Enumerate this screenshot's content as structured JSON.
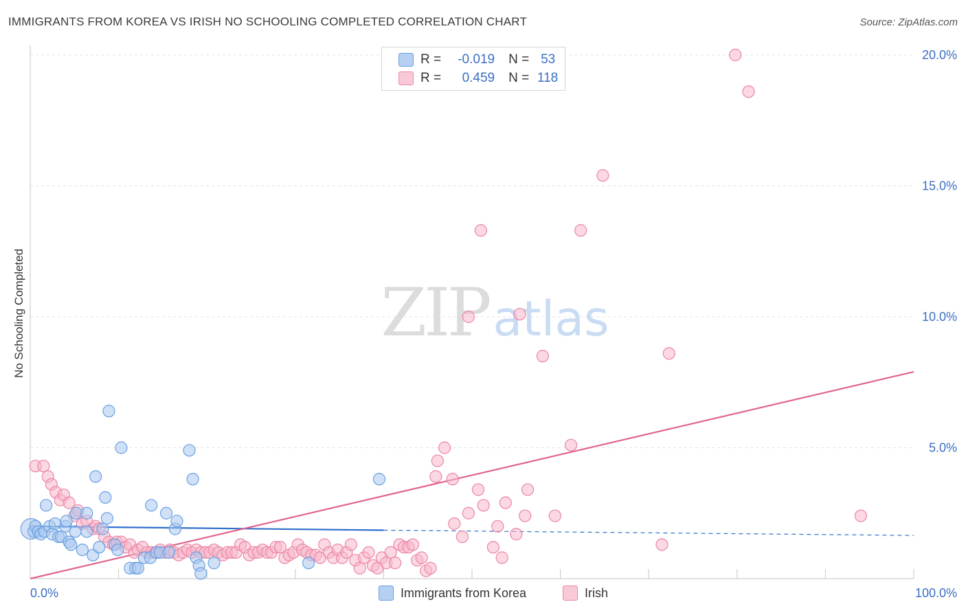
{
  "header": {
    "title": "IMMIGRANTS FROM KOREA VS IRISH NO SCHOOLING COMPLETED CORRELATION CHART",
    "source": "Source: ZipAtlas.com"
  },
  "watermark": {
    "zip": "ZIP",
    "atlas": "atlas"
  },
  "legend": {
    "r_label": "R =",
    "n_label": "N =",
    "rows": [
      {
        "series": "Immigrants from Korea",
        "r": "-0.019",
        "n": "53",
        "fill": "#a9c8f0",
        "stroke": "#6a9fe0"
      },
      {
        "series": "Irish",
        "r": "0.459",
        "n": "118",
        "fill": "#f7b8cb",
        "stroke": "#eb86a6"
      }
    ]
  },
  "bottom_legend": [
    "Immigrants from Korea",
    "Irish"
  ],
  "chart_data": {
    "type": "scatter",
    "title": "IMMIGRANTS FROM KOREA VS IRISH NO SCHOOLING COMPLETED CORRELATION CHART",
    "xlabel": "",
    "ylabel": "No Schooling Completed",
    "xlim": [
      0,
      100
    ],
    "ylim": [
      0,
      20
    ],
    "x_tick_labels": [
      "0.0%",
      "100.0%"
    ],
    "y_ticks": [
      5,
      10,
      15,
      20
    ],
    "y_tick_labels": [
      "5.0%",
      "10.0%",
      "15.0%",
      "20.0%"
    ],
    "grid": true,
    "series": [
      {
        "name": "Immigrants from Korea",
        "color": "#6a9fe0",
        "fill": "#a9c8f0",
        "points": [
          [
            0.1,
            1.9,
            "big"
          ],
          [
            0.4,
            1.8
          ],
          [
            0.6,
            2.0
          ],
          [
            0.9,
            1.8
          ],
          [
            1.2,
            1.7
          ],
          [
            1.6,
            1.8
          ],
          [
            1.8,
            2.8
          ],
          [
            2.2,
            2.0
          ],
          [
            2.5,
            1.7
          ],
          [
            2.8,
            2.1
          ],
          [
            3.2,
            1.6
          ],
          [
            3.5,
            1.6
          ],
          [
            4.0,
            2.0
          ],
          [
            4.1,
            2.2
          ],
          [
            4.4,
            1.4
          ],
          [
            4.6,
            1.3
          ],
          [
            5.1,
            1.8
          ],
          [
            5.2,
            2.5
          ],
          [
            5.9,
            1.1
          ],
          [
            6.4,
            1.8
          ],
          [
            6.4,
            2.5
          ],
          [
            7.1,
            0.9
          ],
          [
            7.4,
            3.9
          ],
          [
            7.8,
            1.2
          ],
          [
            8.2,
            1.9
          ],
          [
            8.5,
            3.1
          ],
          [
            8.7,
            2.3
          ],
          [
            8.9,
            6.4
          ],
          [
            9.6,
            1.3
          ],
          [
            9.9,
            1.1
          ],
          [
            10.3,
            5.0
          ],
          [
            11.3,
            0.4
          ],
          [
            11.9,
            0.4
          ],
          [
            12.2,
            0.4
          ],
          [
            12.9,
            0.8
          ],
          [
            13.6,
            0.8
          ],
          [
            13.7,
            2.8
          ],
          [
            14.3,
            1.0
          ],
          [
            14.7,
            1.0
          ],
          [
            15.4,
            2.5
          ],
          [
            15.7,
            1.0
          ],
          [
            16.4,
            1.9
          ],
          [
            16.6,
            2.2
          ],
          [
            18.0,
            4.9
          ],
          [
            18.4,
            3.8
          ],
          [
            18.8,
            0.8
          ],
          [
            19.1,
            0.5
          ],
          [
            19.3,
            0.2
          ],
          [
            20.8,
            0.6
          ],
          [
            31.5,
            0.6
          ],
          [
            39.5,
            3.8
          ]
        ],
        "trend": {
          "x0": 0,
          "y0": 2.0,
          "x1": 40,
          "y1": 1.85,
          "dash_to": 100,
          "dash_y": 1.65
        }
      },
      {
        "name": "Irish",
        "color": "#eb86a6",
        "fill": "#f7b8cb",
        "points": [
          [
            0.6,
            4.3
          ],
          [
            1.5,
            4.3
          ],
          [
            2.0,
            3.9
          ],
          [
            2.4,
            3.6
          ],
          [
            2.9,
            3.3
          ],
          [
            3.4,
            3.0
          ],
          [
            3.8,
            3.2
          ],
          [
            4.4,
            2.9
          ],
          [
            5.0,
            2.4
          ],
          [
            5.4,
            2.6
          ],
          [
            5.9,
            2.1
          ],
          [
            6.4,
            2.2
          ],
          [
            7.1,
            1.9
          ],
          [
            7.4,
            2.0
          ],
          [
            7.8,
            1.9
          ],
          [
            8.4,
            1.6
          ],
          [
            8.9,
            1.4
          ],
          [
            9.4,
            1.3
          ],
          [
            9.8,
            1.4
          ],
          [
            10.3,
            1.4
          ],
          [
            10.8,
            1.2
          ],
          [
            11.3,
            1.3
          ],
          [
            11.8,
            1.0
          ],
          [
            12.2,
            1.1
          ],
          [
            12.7,
            1.2
          ],
          [
            13.2,
            1.0
          ],
          [
            13.7,
            1.0
          ],
          [
            14.2,
            1.0
          ],
          [
            14.7,
            1.1
          ],
          [
            15.3,
            1.0
          ],
          [
            15.8,
            1.1
          ],
          [
            16.3,
            1.0
          ],
          [
            16.8,
            0.9
          ],
          [
            17.3,
            1.0
          ],
          [
            17.8,
            1.1
          ],
          [
            18.3,
            1.0
          ],
          [
            18.8,
            1.1
          ],
          [
            19.3,
            1.0
          ],
          [
            19.8,
            1.0
          ],
          [
            20.3,
            1.0
          ],
          [
            20.8,
            1.1
          ],
          [
            21.3,
            1.0
          ],
          [
            21.8,
            0.9
          ],
          [
            22.3,
            1.0
          ],
          [
            22.8,
            1.0
          ],
          [
            23.3,
            1.0
          ],
          [
            23.8,
            1.3
          ],
          [
            24.3,
            1.2
          ],
          [
            24.8,
            0.9
          ],
          [
            25.3,
            1.0
          ],
          [
            25.8,
            1.0
          ],
          [
            26.3,
            1.1
          ],
          [
            26.8,
            1.0
          ],
          [
            27.3,
            1.0
          ],
          [
            27.8,
            1.2
          ],
          [
            28.3,
            1.2
          ],
          [
            28.8,
            0.8
          ],
          [
            29.3,
            0.9
          ],
          [
            29.8,
            1.0
          ],
          [
            30.3,
            1.3
          ],
          [
            30.8,
            1.1
          ],
          [
            31.3,
            1.0
          ],
          [
            31.8,
            0.9
          ],
          [
            32.3,
            0.9
          ],
          [
            32.8,
            0.8
          ],
          [
            33.3,
            1.3
          ],
          [
            33.8,
            1.0
          ],
          [
            34.3,
            0.8
          ],
          [
            34.8,
            1.1
          ],
          [
            35.3,
            0.8
          ],
          [
            35.8,
            1.0
          ],
          [
            36.3,
            1.3
          ],
          [
            36.8,
            0.7
          ],
          [
            37.3,
            0.4
          ],
          [
            37.8,
            0.8
          ],
          [
            38.3,
            1.0
          ],
          [
            38.8,
            0.5
          ],
          [
            39.3,
            0.4
          ],
          [
            39.8,
            0.8
          ],
          [
            40.3,
            0.6
          ],
          [
            40.8,
            1.0
          ],
          [
            41.3,
            0.6
          ],
          [
            41.8,
            1.3
          ],
          [
            42.3,
            1.2
          ],
          [
            42.8,
            1.2
          ],
          [
            43.3,
            1.3
          ],
          [
            43.8,
            0.7
          ],
          [
            44.3,
            0.8
          ],
          [
            44.8,
            0.3
          ],
          [
            45.3,
            0.4
          ],
          [
            45.9,
            3.9
          ],
          [
            46.1,
            4.5
          ],
          [
            46.9,
            5.0
          ],
          [
            47.8,
            3.8
          ],
          [
            48.0,
            2.1
          ],
          [
            48.9,
            1.6
          ],
          [
            49.6,
            2.5
          ],
          [
            50.7,
            3.4
          ],
          [
            51.3,
            2.8
          ],
          [
            52.4,
            1.2
          ],
          [
            52.9,
            2.0
          ],
          [
            53.4,
            0.8
          ],
          [
            53.8,
            2.9
          ],
          [
            55.0,
            1.7
          ],
          [
            56.0,
            2.4
          ],
          [
            56.3,
            3.4
          ],
          [
            59.4,
            2.4
          ],
          [
            61.2,
            5.1
          ],
          [
            71.5,
            1.3
          ],
          [
            72.3,
            8.6
          ],
          [
            94.0,
            2.4
          ],
          [
            55.4,
            10.1
          ],
          [
            51.0,
            13.3
          ],
          [
            62.3,
            13.3
          ],
          [
            64.8,
            15.4
          ],
          [
            79.8,
            20.0
          ],
          [
            81.3,
            18.6
          ],
          [
            49.6,
            10.0
          ],
          [
            58.0,
            8.5
          ]
        ],
        "trend": {
          "x0": 0,
          "y0": 0.0,
          "x1": 100,
          "y1": 7.9
        }
      }
    ]
  }
}
